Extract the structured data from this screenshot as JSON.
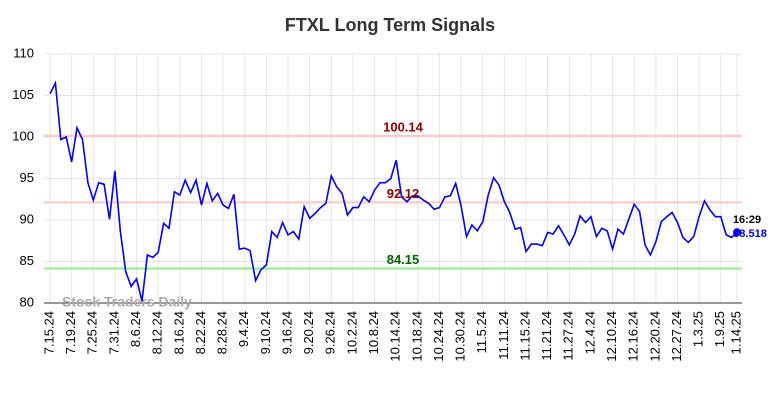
{
  "chart_data": {
    "type": "line",
    "title": "FTXL Long Term Signals",
    "categories": [
      "7.15.24",
      null,
      null,
      null,
      "7.19.24",
      null,
      null,
      null,
      "7.25.24",
      null,
      null,
      null,
      "7.31.24",
      null,
      null,
      null,
      "8.6.24",
      null,
      null,
      null,
      "8.12.24",
      null,
      null,
      null,
      "8.16.24",
      null,
      null,
      null,
      "8.22.24",
      null,
      null,
      null,
      "8.28.24",
      null,
      null,
      null,
      "9.4.24",
      null,
      null,
      null,
      "9.10.24",
      null,
      null,
      null,
      "9.16.24",
      null,
      null,
      null,
      "9.20.24",
      null,
      null,
      null,
      "9.26.24",
      null,
      null,
      null,
      "10.2.24",
      null,
      null,
      null,
      "10.8.24",
      null,
      null,
      null,
      "10.14.24",
      null,
      null,
      null,
      "10.18.24",
      null,
      null,
      null,
      "10.24.24",
      null,
      null,
      null,
      "10.30.24",
      null,
      null,
      null,
      "11.5.24",
      null,
      null,
      null,
      "11.11.24",
      null,
      null,
      null,
      "11.15.24",
      null,
      null,
      null,
      "11.21.24",
      null,
      null,
      null,
      "11.27.24",
      null,
      null,
      null,
      "12.4.24",
      null,
      null,
      null,
      "12.10.24",
      null,
      null,
      null,
      "12.16.24",
      null,
      null,
      null,
      "12.20.24",
      null,
      null,
      null,
      "12.27.24",
      null,
      null,
      null,
      "1.3.25",
      null,
      null,
      null,
      "1.9.25",
      null,
      null,
      "1.14.25"
    ],
    "values": [
      105.2,
      106.5,
      99.7,
      100.0,
      97.0,
      101.1,
      99.7,
      94.5,
      92.4,
      94.5,
      94.3,
      90.1,
      95.9,
      88.7,
      83.8,
      82.0,
      82.9,
      80.2,
      85.8,
      85.5,
      86.1,
      89.6,
      89.0,
      93.4,
      93.0,
      94.8,
      93.3,
      94.8,
      91.8,
      94.4,
      92.3,
      93.2,
      91.8,
      91.4,
      93.1,
      86.5,
      86.6,
      86.3,
      82.7,
      84.0,
      84.6,
      88.6,
      87.9,
      89.7,
      88.2,
      88.6,
      87.7,
      91.6,
      90.2,
      90.8,
      91.5,
      92.0,
      95.3,
      94.0,
      93.2,
      90.6,
      91.5,
      91.5,
      92.8,
      92.2,
      93.6,
      94.5,
      94.5,
      95.0,
      97.2,
      92.8,
      92.2,
      92.9,
      92.9,
      92.4,
      92.0,
      91.3,
      91.5,
      92.8,
      92.9,
      94.4,
      91.7,
      88.0,
      89.4,
      88.7,
      89.8,
      93.0,
      95.1,
      94.2,
      92.2,
      90.9,
      88.9,
      89.1,
      86.2,
      87.1,
      87.1,
      86.9,
      88.5,
      88.3,
      89.3,
      88.2,
      87.0,
      88.3,
      90.5,
      89.7,
      90.4,
      88.0,
      89.0,
      88.7,
      86.5,
      88.9,
      88.3,
      90.1,
      91.9,
      91.0,
      87.0,
      85.8,
      87.4,
      89.8,
      90.4,
      90.9,
      89.7,
      87.9,
      87.3,
      88.0,
      90.4,
      92.3,
      91.2,
      90.4,
      90.4,
      88.2,
      87.9,
      88.518
    ],
    "color": "#0000ee",
    "ylim": [
      80,
      110
    ],
    "yticks": [
      80,
      85,
      90,
      95,
      100,
      105,
      110
    ],
    "grid": true,
    "hlines": [
      {
        "value": 100.14,
        "color": "#ffc8c8",
        "label_color": "#8b0000"
      },
      {
        "value": 92.12,
        "color": "#ffc8c8",
        "label_color": "#8b0000"
      },
      {
        "value": 84.15,
        "color": "#90ee90",
        "label_color": "#006400"
      }
    ],
    "last_time": "16:29",
    "watermark": "Stock Traders Daily"
  }
}
